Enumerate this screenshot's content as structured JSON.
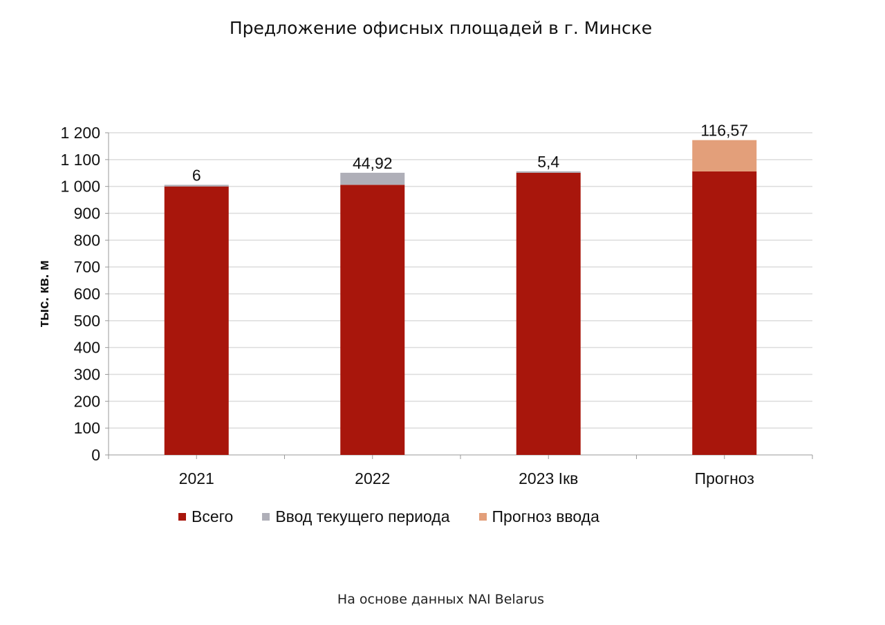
{
  "chart_data": {
    "type": "bar",
    "stacked": true,
    "title": "Предложение офисных площадей в г. Минске",
    "ylabel": "тыс. кв. м",
    "xlabel": "",
    "ylim": [
      0,
      1200
    ],
    "yticks": [
      "0",
      "100",
      "200",
      "300",
      "400",
      "500",
      "600",
      "700",
      "800",
      "900",
      "1 000",
      "1 100",
      "1 200"
    ],
    "categories": [
      "2021",
      "2022",
      "2023 Iкв",
      "Прогноз"
    ],
    "series": [
      {
        "name": "Всего",
        "color": "#a8160c",
        "values": [
          1000,
          1006,
          1051,
          1056
        ]
      },
      {
        "name": "Ввод текущего периода",
        "color": "#afafb8",
        "values": [
          6,
          44.92,
          5.4,
          0
        ]
      },
      {
        "name": "Прогноз ввода",
        "color": "#e39f7a",
        "values": [
          0,
          0,
          0,
          116.57
        ]
      }
    ],
    "data_labels": [
      "6",
      "44,92",
      "5,4",
      "116,57"
    ],
    "grid": true,
    "legend": "bottom"
  },
  "source": "На основе данных NAI Belarus"
}
